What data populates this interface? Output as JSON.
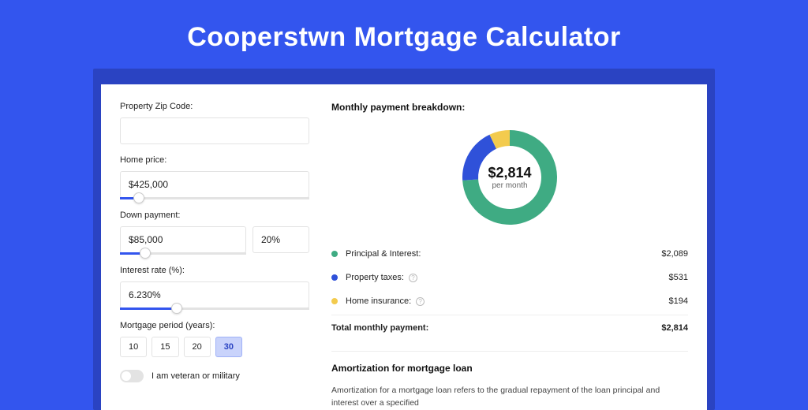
{
  "page": {
    "title": "Cooperstwn Mortgage Calculator",
    "background_color": "#3355ee",
    "card_outer_color": "#2a43c2"
  },
  "form": {
    "zip": {
      "label": "Property Zip Code:",
      "value": ""
    },
    "home_price": {
      "label": "Home price:",
      "value": "$425,000",
      "slider_pct": 10
    },
    "down_payment": {
      "label": "Down payment:",
      "amount": "$85,000",
      "percent": "20%",
      "slider_pct": 20
    },
    "interest_rate": {
      "label": "Interest rate (%):",
      "value": "6.230%",
      "slider_pct": 30
    },
    "period": {
      "label": "Mortgage period (years):",
      "options": [
        "10",
        "15",
        "20",
        "30"
      ],
      "selected_index": 3
    },
    "veteran": {
      "label": "I am veteran or military",
      "on": false
    }
  },
  "breakdown": {
    "heading": "Monthly payment breakdown:",
    "donut": {
      "amount": "$2,814",
      "sublabel": "per month",
      "slices": [
        {
          "key": "principal_interest",
          "pct": 74,
          "color": "#3fab83"
        },
        {
          "key": "property_taxes",
          "pct": 19,
          "color": "#2f51d9"
        },
        {
          "key": "home_insurance",
          "pct": 7,
          "color": "#f3cb4e"
        }
      ]
    },
    "rows": [
      {
        "key": "principal_interest",
        "label": "Principal & Interest:",
        "value": "$2,089",
        "dot": "#3fab83",
        "info": false
      },
      {
        "key": "property_taxes",
        "label": "Property taxes:",
        "value": "$531",
        "dot": "#2f51d9",
        "info": true
      },
      {
        "key": "home_insurance",
        "label": "Home insurance:",
        "value": "$194",
        "dot": "#f3cb4e",
        "info": true
      }
    ],
    "total": {
      "label": "Total monthly payment:",
      "value": "$2,814"
    }
  },
  "amortization": {
    "heading": "Amortization for mortgage loan",
    "body": "Amortization for a mortgage loan refers to the gradual repayment of the loan principal and interest over a specified"
  }
}
